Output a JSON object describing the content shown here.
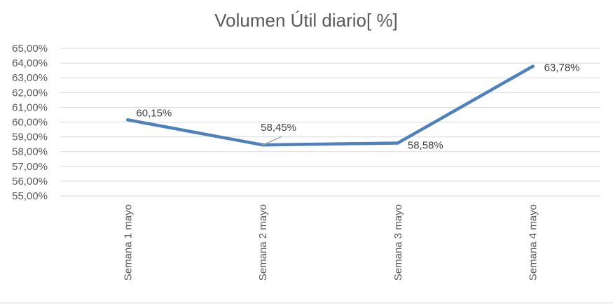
{
  "chart_data": {
    "type": "line",
    "title": "Volumen Útil  diario[ %]",
    "xlabel": "",
    "ylabel": "",
    "categories": [
      "Semana 1 mayo",
      "Semana 2 mayo",
      "Semana 3 mayo",
      "Semana 4 mayo"
    ],
    "series": [
      {
        "values": [
          60.15,
          58.45,
          58.58,
          63.78
        ],
        "labels": [
          "60,15%",
          "58,45%",
          "58,58%",
          "63,78%"
        ],
        "color": "#4F81BD"
      }
    ],
    "ylim": [
      55,
      65
    ],
    "y_ticks": [
      {
        "value": 65,
        "label": "65,00%"
      },
      {
        "value": 64,
        "label": "64,00%"
      },
      {
        "value": 63,
        "label": "63,00%"
      },
      {
        "value": 62,
        "label": "62,00%"
      },
      {
        "value": 61,
        "label": "61,00%"
      },
      {
        "value": 60,
        "label": "60,00%"
      },
      {
        "value": 59,
        "label": "59,00%"
      },
      {
        "value": 58,
        "label": "58,00%"
      },
      {
        "value": 57,
        "label": "57,00%"
      },
      {
        "value": 56,
        "label": "56,00%"
      },
      {
        "value": 55,
        "label": "55,00%"
      }
    ],
    "grid": true,
    "legend": "none"
  }
}
